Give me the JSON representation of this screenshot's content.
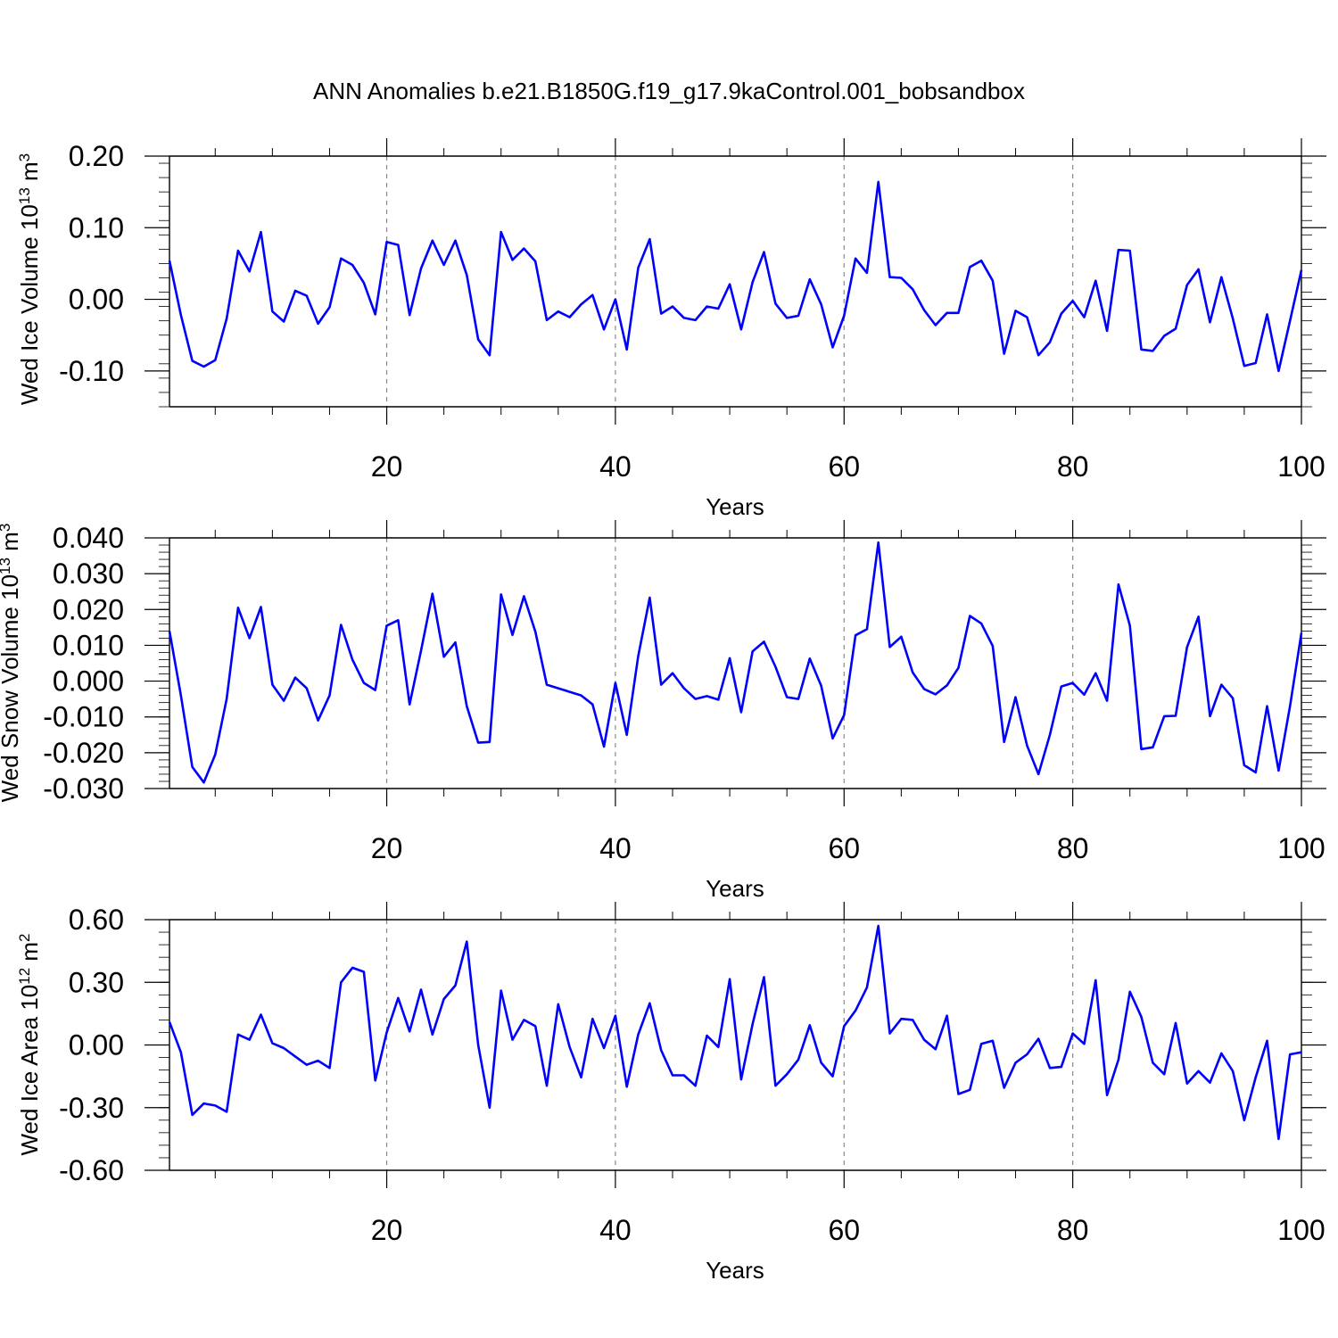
{
  "title": "ANN Anomalies b.e21.B1850G.f19_g17.9kaControl.001_bobsandbox",
  "series_color": "#0000ff",
  "chart_data": [
    {
      "type": "line",
      "ylabel": {
        "base": "Wed Ice Volume 10",
        "exp": "13",
        "unit": " m",
        "unit_exp": "3"
      },
      "xlabel": "Years",
      "xlim": [
        1,
        100
      ],
      "ylim": [
        -0.15,
        0.2
      ],
      "xticks": [
        20,
        40,
        60,
        80,
        100
      ],
      "xtick_labels": [
        "20",
        "40",
        "60",
        "80",
        "100"
      ],
      "yticks": [
        0.2,
        0.1,
        0.0,
        -0.1
      ],
      "ytick_labels": [
        "0.20",
        "0.10",
        "0.00",
        "-0.10"
      ],
      "grid": "vertical dashed",
      "values": [
        0.054,
        -0.022,
        -0.086,
        -0.094,
        -0.085,
        -0.027,
        0.068,
        0.039,
        0.094,
        -0.017,
        -0.031,
        0.012,
        0.005,
        -0.034,
        -0.011,
        0.057,
        0.048,
        0.023,
        -0.021,
        0.08,
        0.076,
        -0.022,
        0.043,
        0.082,
        0.048,
        0.082,
        0.034,
        -0.056,
        -0.078,
        0.094,
        0.055,
        0.071,
        0.053,
        -0.029,
        -0.017,
        -0.025,
        -0.007,
        0.006,
        -0.042,
        0.0,
        -0.07,
        0.044,
        0.084,
        -0.02,
        -0.01,
        -0.026,
        -0.029,
        -0.01,
        -0.013,
        0.021,
        -0.042,
        0.024,
        0.066,
        -0.006,
        -0.026,
        -0.023,
        0.028,
        -0.007,
        -0.067,
        -0.023,
        0.057,
        0.037,
        0.164,
        0.031,
        0.03,
        0.014,
        -0.015,
        -0.036,
        -0.019,
        -0.019,
        0.045,
        0.054,
        0.026,
        -0.076,
        -0.016,
        -0.025,
        -0.078,
        -0.06,
        -0.02,
        -0.002,
        -0.025,
        0.026,
        -0.044,
        0.069,
        0.068,
        -0.07,
        -0.072,
        -0.051,
        -0.041,
        0.02,
        0.042,
        -0.032,
        0.031,
        -0.027,
        -0.093,
        -0.089,
        -0.021,
        -0.1,
        -0.03,
        0.041
      ]
    },
    {
      "type": "line",
      "ylabel": {
        "base": "Wed Snow Volume 10",
        "exp": "13",
        "unit": " m",
        "unit_exp": "3"
      },
      "xlabel": "Years",
      "xlim": [
        1,
        100
      ],
      "ylim": [
        -0.03,
        0.04
      ],
      "xticks": [
        20,
        40,
        60,
        80,
        100
      ],
      "xtick_labels": [
        "20",
        "40",
        "60",
        "80",
        "100"
      ],
      "yticks": [
        0.04,
        0.03,
        0.02,
        0.01,
        0.0,
        -0.01,
        -0.02,
        -0.03
      ],
      "ytick_labels": [
        "0.040",
        "0.030",
        "0.020",
        "0.010",
        "0.000",
        "-0.010",
        "-0.020",
        "-0.030"
      ],
      "grid": "vertical dashed",
      "values": [
        0.014,
        -0.004,
        -0.024,
        -0.0283,
        -0.0205,
        -0.005,
        0.0205,
        0.012,
        0.0207,
        -0.001,
        -0.0055,
        0.001,
        -0.002,
        -0.011,
        -0.004,
        0.0157,
        0.006,
        -0.0005,
        -0.0025,
        0.0155,
        0.017,
        -0.0065,
        0.0085,
        0.0244,
        0.0068,
        0.0108,
        -0.007,
        -0.0172,
        -0.017,
        0.0242,
        0.0129,
        0.0237,
        0.0138,
        -0.001,
        -0.002,
        -0.003,
        -0.004,
        -0.0065,
        -0.0183,
        -0.0005,
        -0.015,
        0.007,
        0.0233,
        -0.001,
        0.0022,
        -0.002,
        -0.005,
        -0.0042,
        -0.0052,
        0.0064,
        -0.0087,
        0.0083,
        0.011,
        0.004,
        -0.0045,
        -0.005,
        0.0063,
        -0.0013,
        -0.016,
        -0.0095,
        0.0128,
        0.0145,
        0.0387,
        0.0095,
        0.0124,
        0.0024,
        -0.0022,
        -0.0037,
        -0.0012,
        0.0037,
        0.0182,
        0.0161,
        0.0098,
        -0.017,
        -0.0045,
        -0.018,
        -0.026,
        -0.015,
        -0.0015,
        -0.0005,
        -0.0038,
        0.0022,
        -0.0055,
        0.027,
        0.0155,
        -0.019,
        -0.0185,
        -0.0098,
        -0.0097,
        0.0095,
        0.018,
        -0.0098,
        -0.001,
        -0.0048,
        -0.0235,
        -0.0255,
        -0.007,
        -0.025,
        -0.007,
        0.0135
      ]
    },
    {
      "type": "line",
      "ylabel": {
        "base": "Wed Ice Area 10",
        "exp": "12",
        "unit": " m",
        "unit_exp": "2"
      },
      "xlabel": "Years",
      "xlim": [
        1,
        100
      ],
      "ylim": [
        -0.6,
        0.6
      ],
      "xticks": [
        20,
        40,
        60,
        80,
        100
      ],
      "xtick_labels": [
        "20",
        "40",
        "60",
        "80",
        "100"
      ],
      "yticks": [
        0.6,
        0.3,
        0.0,
        -0.3,
        -0.6
      ],
      "ytick_labels": [
        "0.60",
        "0.30",
        "0.00",
        "-0.30",
        "-0.60"
      ],
      "grid": "vertical dashed",
      "values": [
        0.11,
        -0.035,
        -0.335,
        -0.28,
        -0.29,
        -0.32,
        0.05,
        0.025,
        0.145,
        0.008,
        -0.015,
        -0.055,
        -0.095,
        -0.075,
        -0.11,
        0.3,
        0.37,
        0.35,
        -0.17,
        0.06,
        0.225,
        0.065,
        0.265,
        0.05,
        0.22,
        0.285,
        0.495,
        0.0,
        -0.3,
        0.26,
        0.025,
        0.12,
        0.09,
        -0.195,
        0.195,
        -0.01,
        -0.155,
        0.125,
        -0.015,
        0.14,
        -0.2,
        0.05,
        0.2,
        -0.025,
        -0.145,
        -0.145,
        -0.195,
        0.045,
        -0.01,
        0.315,
        -0.165,
        0.1,
        0.325,
        -0.195,
        -0.14,
        -0.07,
        0.095,
        -0.085,
        -0.15,
        0.09,
        0.165,
        0.275,
        0.57,
        0.055,
        0.125,
        0.12,
        0.025,
        -0.02,
        0.14,
        -0.235,
        -0.215,
        0.005,
        0.02,
        -0.205,
        -0.085,
        -0.045,
        0.03,
        -0.11,
        -0.105,
        0.055,
        0.005,
        0.31,
        -0.24,
        -0.07,
        0.255,
        0.135,
        -0.085,
        -0.14,
        0.105,
        -0.185,
        -0.125,
        -0.18,
        -0.04,
        -0.125,
        -0.36,
        -0.155,
        0.02,
        -0.45,
        -0.045,
        -0.035
      ]
    }
  ]
}
